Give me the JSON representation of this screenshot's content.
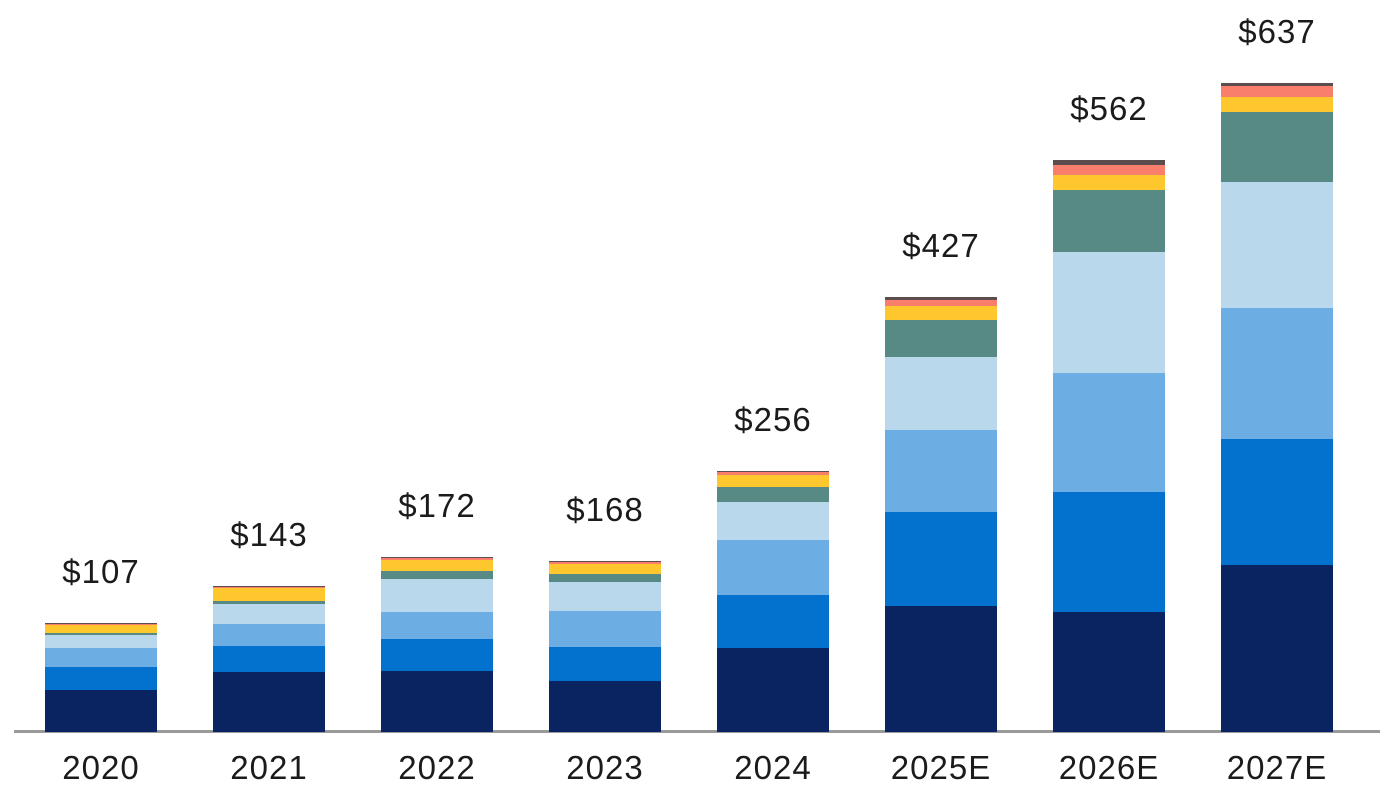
{
  "chart_data": {
    "type": "bar",
    "subtype": "stacked-vertical",
    "title": "",
    "xlabel": "",
    "ylabel": "",
    "unit_prefix": "$",
    "grid": false,
    "legend": "none",
    "axis_line_color": "#9a9a9a",
    "label_color": "#1b1b1b",
    "background_color": "#ffffff",
    "categories": [
      "2020",
      "2021",
      "2022",
      "2023",
      "2024",
      "2025E",
      "2026E",
      "2027E"
    ],
    "totals": [
      107,
      143,
      172,
      168,
      256,
      427,
      562,
      637
    ],
    "total_labels": [
      "$107",
      "$143",
      "$172",
      "$168",
      "$256",
      "$427",
      "$562",
      "$637"
    ],
    "series": [
      {
        "name": "segment-navy",
        "color": "#0a2462",
        "values": [
          41,
          59,
          60,
          50,
          82,
          124,
          118,
          164
        ]
      },
      {
        "name": "segment-blue",
        "color": "#0272ce",
        "values": [
          23,
          25,
          31,
          33,
          53,
          92,
          118,
          124
        ]
      },
      {
        "name": "segment-sky-blue",
        "color": "#6cade4",
        "values": [
          18,
          22,
          27,
          36,
          54,
          81,
          117,
          128
        ]
      },
      {
        "name": "segment-pale-blue",
        "color": "#b9d8ec",
        "values": [
          13,
          20,
          32,
          28,
          37,
          71,
          118,
          124
        ]
      },
      {
        "name": "segment-teal",
        "color": "#578a84",
        "values": [
          2,
          3,
          8,
          8,
          15,
          37,
          61,
          69
        ]
      },
      {
        "name": "segment-yellow",
        "color": "#ffc72e",
        "values": [
          8,
          12,
          11,
          10,
          11,
          13,
          15,
          15
        ]
      },
      {
        "name": "segment-coral",
        "color": "#f97e6b",
        "values": [
          1,
          1,
          2,
          2,
          3,
          6,
          10,
          10
        ]
      },
      {
        "name": "segment-dark-red",
        "color": "#5d4c4e",
        "values": [
          1,
          1,
          1,
          1,
          1,
          3,
          5,
          3
        ]
      }
    ]
  }
}
